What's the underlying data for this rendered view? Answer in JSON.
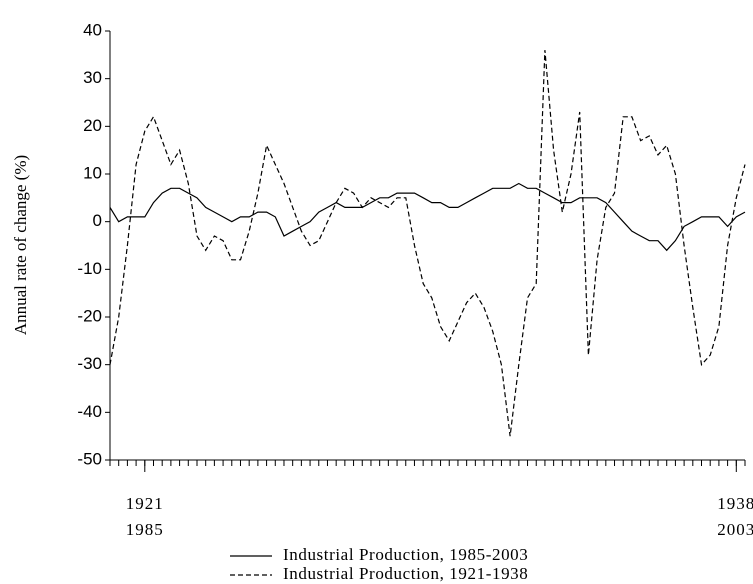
{
  "chart_data": {
    "type": "line",
    "y_label": "Annual rate of change (%)",
    "x": [
      1920,
      1920.25,
      1920.5,
      1920.75,
      1921,
      1921.25,
      1921.5,
      1921.75,
      1922,
      1922.25,
      1922.5,
      1922.75,
      1923,
      1923.25,
      1923.5,
      1923.75,
      1924,
      1924.25,
      1924.5,
      1924.75,
      1925,
      1925.25,
      1925.5,
      1925.75,
      1926,
      1926.25,
      1926.5,
      1926.75,
      1927,
      1927.25,
      1927.5,
      1927.75,
      1928,
      1928.25,
      1928.5,
      1928.75,
      1929,
      1929.25,
      1929.5,
      1929.75,
      1930,
      1930.25,
      1930.5,
      1930.75,
      1931,
      1931.25,
      1931.5,
      1931.75,
      1932,
      1932.25,
      1932.5,
      1932.75,
      1933,
      1933.25,
      1933.5,
      1933.75,
      1934,
      1934.25,
      1934.5,
      1934.75,
      1935,
      1935.25,
      1935.5,
      1935.75,
      1936,
      1936.25,
      1936.5,
      1936.75,
      1937,
      1937.25,
      1937.5,
      1937.75,
      1938,
      1938.25
    ],
    "series": [
      {
        "name": "Industrial Production, 1985-2003",
        "color": "#000000",
        "dash": "none",
        "values": [
          3,
          0,
          1,
          1,
          1,
          4,
          6,
          7,
          7,
          6,
          5,
          3,
          2,
          1,
          0,
          1,
          1,
          2,
          2,
          1,
          -3,
          -2,
          -1,
          0,
          2,
          3,
          4,
          3,
          3,
          3,
          4,
          5,
          5,
          6,
          6,
          6,
          5,
          4,
          4,
          3,
          3,
          4,
          5,
          6,
          7,
          7,
          7,
          8,
          7,
          7,
          6,
          5,
          4,
          4,
          5,
          5,
          5,
          4,
          2,
          0,
          -2,
          -3,
          -4,
          -4,
          -6,
          -4,
          -1,
          0,
          1,
          1,
          1,
          -1,
          1,
          2
        ]
      },
      {
        "name": "Industrial Production, 1921-1938",
        "color": "#000000",
        "dash": "5,3",
        "values": [
          -30,
          -20,
          -5,
          12,
          19,
          22,
          17,
          12,
          15,
          8,
          -3,
          -6,
          -3,
          -4,
          -8,
          -8,
          -2,
          6,
          16,
          12,
          8,
          3,
          -2,
          -5,
          -4,
          0,
          4,
          7,
          6,
          3,
          5,
          4,
          3,
          5,
          5,
          -5,
          -13,
          -16,
          -22,
          -25,
          -21,
          -17,
          -15,
          -18,
          -23,
          -30,
          -45,
          -30,
          -16,
          -13,
          36,
          15,
          2,
          10,
          23,
          -28,
          -8,
          3,
          6,
          22,
          22,
          17,
          18,
          14,
          16,
          10,
          -5,
          -18,
          -30,
          -28,
          -22,
          -5,
          5,
          12
        ]
      }
    ],
    "xlim": [
      1920,
      1938.25
    ],
    "xticks": [
      1921,
      1938
    ],
    "xticks_lower": [
      {
        "value": 1921,
        "label": "1985"
      },
      {
        "value": 1938,
        "label": "2003"
      }
    ],
    "ylim": [
      -50,
      40
    ],
    "yticks": [
      -50,
      -40,
      -30,
      -20,
      -10,
      0,
      10,
      20,
      30,
      40
    ]
  }
}
